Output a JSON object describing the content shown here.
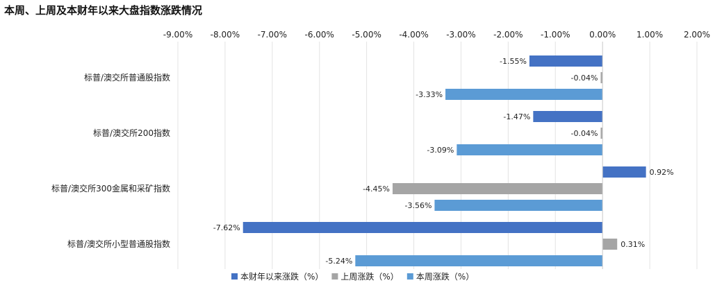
{
  "chart_data": {
    "type": "bar",
    "orientation": "horizontal",
    "title": "本周、上周及本财年以来大盘指数涨跌情况",
    "categories": [
      "标普/澳交所普通股指数",
      "标普/澳交所200指数",
      "标普/澳交所300金属和采矿指数",
      "标普/澳交所小型普通股指数"
    ],
    "series": [
      {
        "name": "本财年以来涨跌（%）",
        "values": [
          -1.55,
          -1.47,
          0.92,
          -7.62
        ],
        "labels": [
          "-1.55%",
          "-1.47%",
          "0.92%",
          "-7.62%"
        ],
        "color": "#4472C4"
      },
      {
        "name": "上周涨跌（%）",
        "values": [
          -0.04,
          -0.04,
          -4.45,
          0.31
        ],
        "labels": [
          "-0.04%",
          "-0.04%",
          "-4.45%",
          "0.31%"
        ],
        "color": "#A5A5A5"
      },
      {
        "name": "本周涨跌（%）",
        "values": [
          -3.33,
          -3.09,
          -3.56,
          -5.24
        ],
        "labels": [
          "-3.33%",
          "-3.09%",
          "-3.56%",
          "-5.24%"
        ],
        "color": "#5B9BD5"
      }
    ],
    "xlim": [
      -9,
      2
    ],
    "ticks": [
      -9,
      -8,
      -7,
      -6,
      -5,
      -4,
      -3,
      -2,
      -1,
      0,
      1,
      2
    ],
    "tick_labels": [
      "-9.00%",
      "-8.00%",
      "-7.00%",
      "-6.00%",
      "-5.00%",
      "-4.00%",
      "-3.00%",
      "-2.00%",
      "-1.00%",
      "0.00%",
      "1.00%",
      "2.00%"
    ],
    "axis_position": "top",
    "grid": true,
    "legend": "bottom"
  }
}
